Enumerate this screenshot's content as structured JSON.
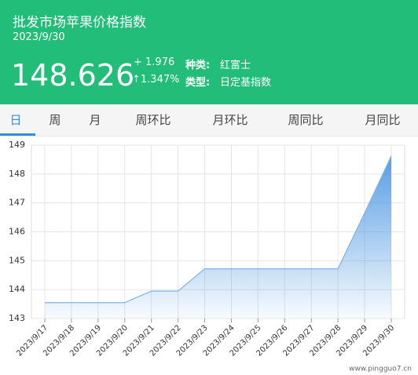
{
  "header": {
    "title": "批发市场苹果价格指数",
    "date": "2023/9/30",
    "value": "148.626",
    "change": "+ 1.976",
    "change_pct": "↑1.347%",
    "kind_label": "种类:",
    "kind": "红富士",
    "type_label": "类型:",
    "type": "日定基指数"
  },
  "tabs": {
    "items": [
      "日",
      "周",
      "月",
      "周环比",
      "月环比",
      "周同比",
      "月同比"
    ],
    "selected": 0
  },
  "chart_data": {
    "type": "area",
    "x": [
      "2023/9/17",
      "2023/9/18",
      "2023/9/19",
      "2023/9/20",
      "2023/9/21",
      "2023/9/22",
      "2023/9/23",
      "2023/9/24",
      "2023/9/25",
      "2023/9/26",
      "2023/9/27",
      "2023/9/28",
      "2023/9/29",
      "2023/9/30"
    ],
    "values": [
      143.55,
      143.55,
      143.55,
      143.55,
      143.95,
      143.95,
      144.72,
      144.72,
      144.72,
      144.72,
      144.72,
      144.72,
      146.65,
      148.626
    ],
    "color": "#7fb3e3",
    "ylim": [
      143,
      149
    ],
    "yticks": [
      143,
      144,
      145,
      146,
      147,
      148,
      149
    ],
    "grid": true
  },
  "watermark": "www.pingguo7.cn"
}
